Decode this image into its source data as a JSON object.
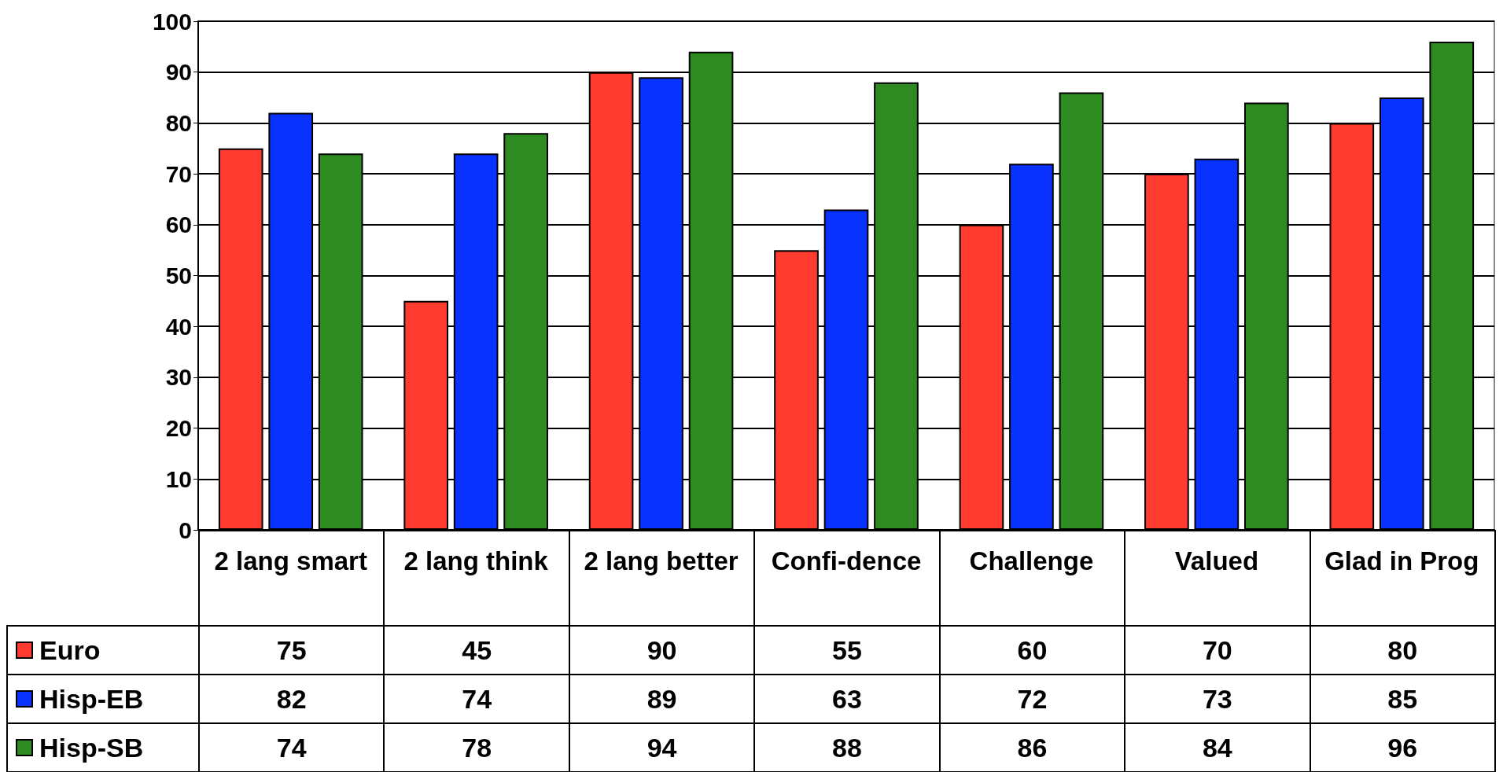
{
  "chart_data": {
    "type": "bar",
    "categories": [
      "2 lang smart",
      "2 lang think",
      "2 lang better",
      "Confi-dence",
      "Challenge",
      "Valued",
      "Glad in Prog"
    ],
    "series": [
      {
        "name": "Euro",
        "color": "#ff3b2f",
        "values": [
          75,
          45,
          90,
          55,
          60,
          70,
          80
        ]
      },
      {
        "name": "Hisp-EB",
        "color": "#0a32ff",
        "values": [
          82,
          74,
          89,
          63,
          72,
          73,
          85
        ]
      },
      {
        "name": "Hisp-SB",
        "color": "#2e8b22",
        "values": [
          74,
          78,
          94,
          88,
          86,
          84,
          96
        ]
      }
    ],
    "ylim": [
      0,
      100
    ],
    "yticks": [
      0,
      10,
      20,
      30,
      40,
      50,
      60,
      70,
      80,
      90,
      100
    ],
    "grid": "y",
    "data_labels": true,
    "legend": "bottom left"
  }
}
